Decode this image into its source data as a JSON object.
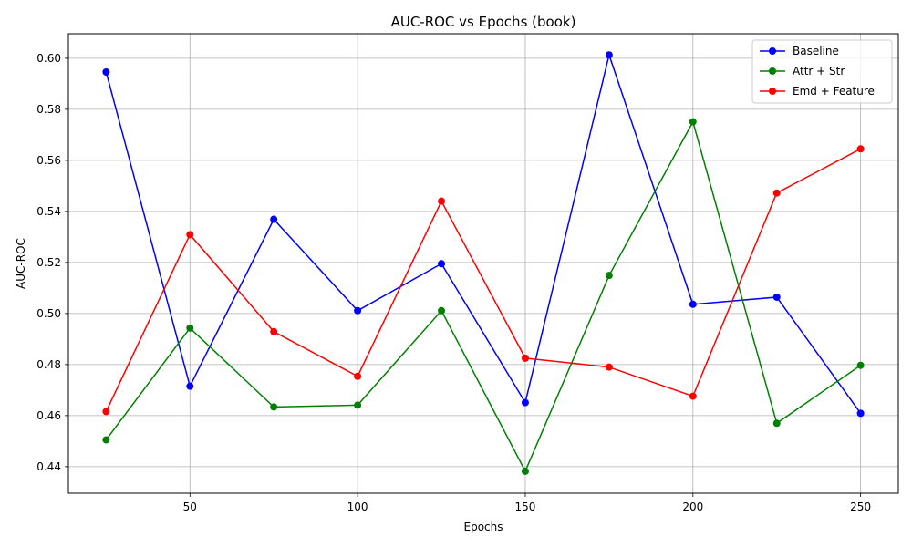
{
  "chart_data": {
    "type": "line",
    "title": "AUC-ROC vs Epochs (book)",
    "xlabel": "Epochs",
    "ylabel": "AUC-ROC",
    "x": [
      25,
      50,
      75,
      100,
      125,
      150,
      175,
      200,
      225,
      250
    ],
    "xlim": [
      13.75,
      261.25
    ],
    "ylim": [
      0.4296,
      0.6096
    ],
    "xticks": [
      50,
      100,
      150,
      200,
      250
    ],
    "xtick_labels": [
      "50",
      "100",
      "150",
      "200",
      "250"
    ],
    "yticks": [
      0.44,
      0.46,
      0.48,
      0.5,
      0.52,
      0.54,
      0.56,
      0.58,
      0.6
    ],
    "ytick_labels": [
      "0.44",
      "0.46",
      "0.48",
      "0.50",
      "0.52",
      "0.54",
      "0.56",
      "0.58",
      "0.60"
    ],
    "grid": true,
    "legend_position": "top-right",
    "series": [
      {
        "name": "Baseline",
        "color": "#0000ff",
        "values": [
          0.5946,
          0.4715,
          0.5369,
          0.5011,
          0.5195,
          0.4651,
          0.6013,
          0.5036,
          0.5064,
          0.4609
        ]
      },
      {
        "name": "Attr + Str",
        "color": "#008000",
        "values": [
          0.4505,
          0.4943,
          0.4634,
          0.4641,
          0.5011,
          0.4382,
          0.5149,
          0.5751,
          0.457,
          0.4797
        ]
      },
      {
        "name": "Emd + Feature",
        "color": "#ff0000",
        "values": [
          0.4616,
          0.5309,
          0.4929,
          0.4754,
          0.544,
          0.4825,
          0.479,
          0.4676,
          0.5472,
          0.5645
        ]
      }
    ]
  }
}
